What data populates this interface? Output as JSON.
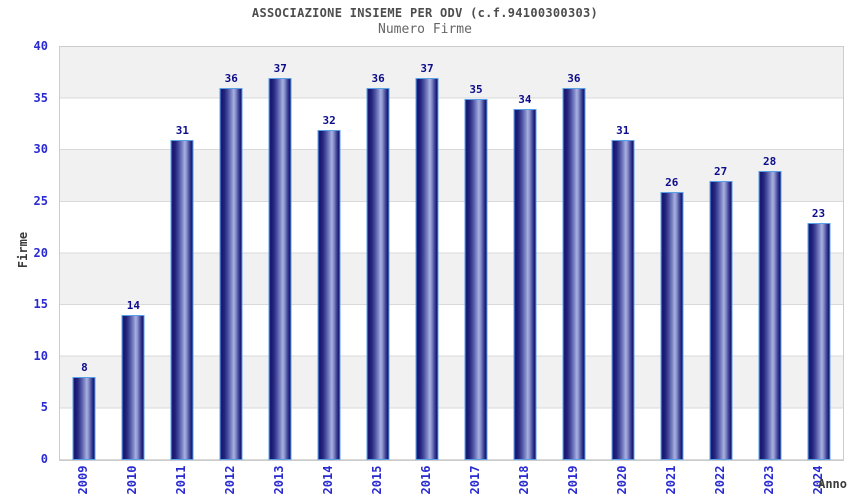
{
  "chart_data": {
    "type": "bar",
    "title": "ASSOCIAZIONE INSIEME PER ODV (c.f.94100300303)",
    "subtitle": "Numero Firme",
    "xlabel": "Anno",
    "ylabel": "Firme",
    "categories": [
      "2009",
      "2010",
      "2011",
      "2012",
      "2013",
      "2014",
      "2015",
      "2016",
      "2017",
      "2018",
      "2019",
      "2020",
      "2021",
      "2022",
      "2023",
      "2024"
    ],
    "values": [
      8,
      14,
      31,
      36,
      37,
      32,
      36,
      37,
      35,
      34,
      36,
      31,
      26,
      27,
      28,
      23
    ],
    "ylim": [
      0,
      40
    ],
    "y_ticks": [
      0,
      5,
      10,
      15,
      20,
      25,
      30,
      35,
      40
    ],
    "grid": true,
    "legend_position": "none",
    "colors": {
      "bar_dark": "#16166e",
      "bar_light": "#a8b0de",
      "bar_border": "#57a0e8",
      "axis_tick_label": "#2a2ad2",
      "value_label": "#0d0d8c",
      "title": "#4d4d4d",
      "subtitle": "#666666",
      "axis_title": "#3b3b3b",
      "band_gray": "#f1f1f1",
      "band_white": "#ffffff",
      "grid_line": "#d9d9d9",
      "plot_border": "#cccccc"
    }
  }
}
